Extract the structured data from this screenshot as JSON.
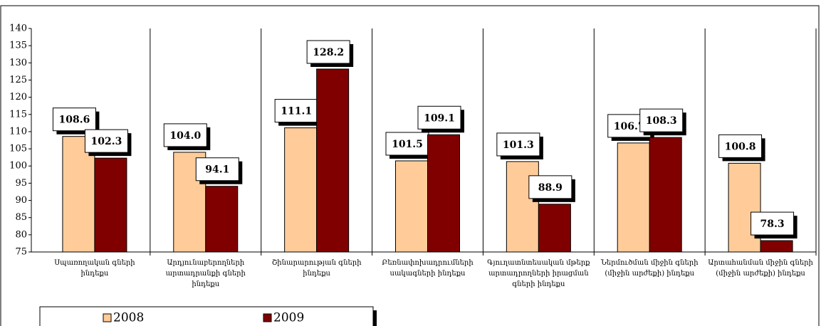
{
  "chart_data": {
    "type": "bar",
    "categories": [
      "Սպառողական գների ինդեքս",
      "Արդյունաբերողների արտադրանքի գների ինդեքս",
      "Շինարարության գների ինդեքս",
      "Բեռնափոխադրումների սակագների ինդեքս",
      "Գյուղատնտեսական մթերք արտադրողների իրացման գների ինդեքս",
      "Ներմուծման միջին գների (միջին արժեքի) ինդեքս",
      "Արտահանման միջին գների (միջին արժեքի) ինդեքս"
    ],
    "series": [
      {
        "name": "2008",
        "color": "#ffcc99",
        "values": [
          108.6,
          104.0,
          111.1,
          101.5,
          101.3,
          106.7,
          100.8
        ],
        "value_labels": [
          "108.6",
          "104.0",
          "111.1",
          "101.5",
          "101.3",
          "106.7",
          "100.8"
        ]
      },
      {
        "name": "2009",
        "color": "#800000",
        "values": [
          102.3,
          94.1,
          128.2,
          109.1,
          88.9,
          108.3,
          78.3
        ],
        "value_labels": [
          "102.3",
          "94.1",
          "128.2",
          "109.1",
          "88.9",
          "108.3",
          "78.3"
        ]
      }
    ],
    "ylim": [
      75,
      140
    ],
    "yticks": [
      75,
      80,
      85,
      90,
      95,
      100,
      105,
      110,
      115,
      120,
      125,
      130,
      135,
      140
    ]
  }
}
